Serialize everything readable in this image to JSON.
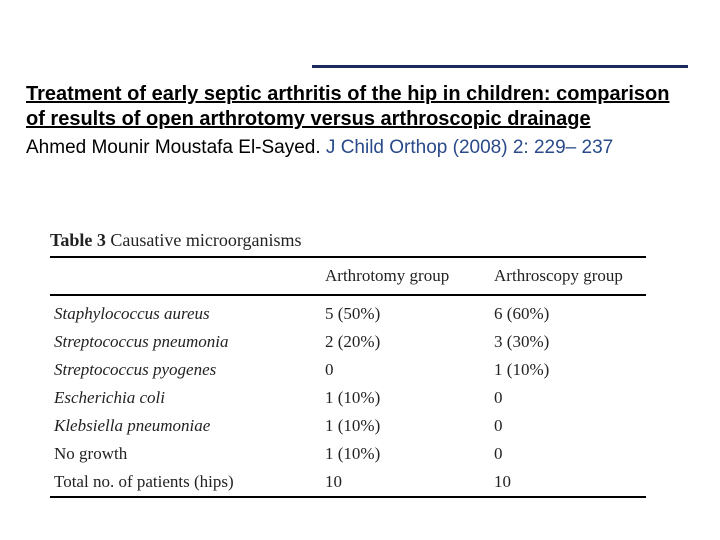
{
  "topRule": {
    "color": "#1a2a5a"
  },
  "header": {
    "title": "Treatment of early septic arthritis of the hip in children: comparison of results of open arthrotomy versus arthroscopic drainage",
    "author": "Ahmed Mounir Moustafa El-Sayed.",
    "journal": "J Child Orthop (2008) 2: 229– 237"
  },
  "table": {
    "label": "Table 3",
    "caption": "Causative microorganisms",
    "columns": [
      "",
      "Arthrotomy group",
      "Arthroscopy group"
    ],
    "rows": [
      {
        "name": "Staphylococcus aureus",
        "italic": true,
        "a": "5 (50%)",
        "b": "6 (60%)"
      },
      {
        "name": "Streptococcus pneumonia",
        "italic": true,
        "a": "2 (20%)",
        "b": "3 (30%)"
      },
      {
        "name": "Streptococcus pyogenes",
        "italic": true,
        "a": "0",
        "b": "1 (10%)"
      },
      {
        "name": "Escherichia coli",
        "italic": true,
        "a": "1 (10%)",
        "b": "0"
      },
      {
        "name": "Klebsiella pneumoniae",
        "italic": true,
        "a": "1 (10%)",
        "b": "0"
      },
      {
        "name": "No growth",
        "italic": false,
        "a": "1 (10%)",
        "b": "0"
      },
      {
        "name": "Total no. of patients (hips)",
        "italic": false,
        "a": "10",
        "b": "10"
      }
    ],
    "style": {
      "font": "Times New Roman",
      "fontsize": 17,
      "rule_thin": "#000000",
      "rule_thick": "#000000"
    }
  }
}
